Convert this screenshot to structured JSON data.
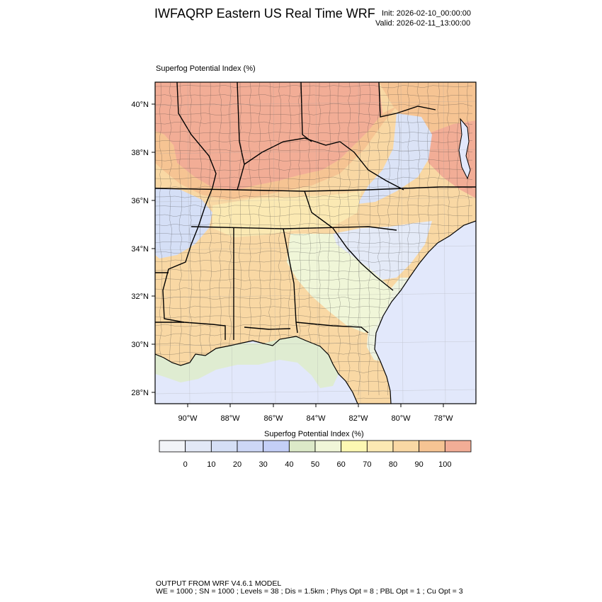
{
  "title": "IWFAQRP Eastern US Real Time WRF",
  "init_text": "Init: 2026-02-10_00:00:00",
  "valid_text": "Valid: 2026-02-11_13:00:00",
  "field_title": "Superfog Potential Index   (%)",
  "colorbar": {
    "title": "Superfog Potential Index  (%)",
    "levels": [
      "0",
      "10",
      "20",
      "30",
      "40",
      "50",
      "60",
      "70",
      "80",
      "90",
      "100"
    ],
    "colors": [
      "#f2f4f8",
      "#e2e8f6",
      "#d5dff6",
      "#cdd7f6",
      "#c4cff7",
      "#dce9c8",
      "#f0f6d8",
      "#fcf8b2",
      "#fbe9b3",
      "#f9d8a4",
      "#f6c493",
      "#f2ad96"
    ]
  },
  "map": {
    "lat_labels": [
      "40°N",
      "38°N",
      "36°N",
      "34°N",
      "32°N",
      "30°N",
      "28°N"
    ],
    "lon_labels": [
      "90°W",
      "88°W",
      "86°W",
      "84°W",
      "82°W",
      "80°W",
      "78°W"
    ],
    "ocean_color": "#e2e8fb"
  },
  "footer": {
    "line1": "OUTPUT FROM WRF V4.6.1 MODEL",
    "line2": "WE = 1000 ; SN = 1000 ; Levels = 38 ; Dis = 1.5km ; Phys Opt = 8 ; PBL Opt = 1 ; Cu Opt = 3"
  }
}
